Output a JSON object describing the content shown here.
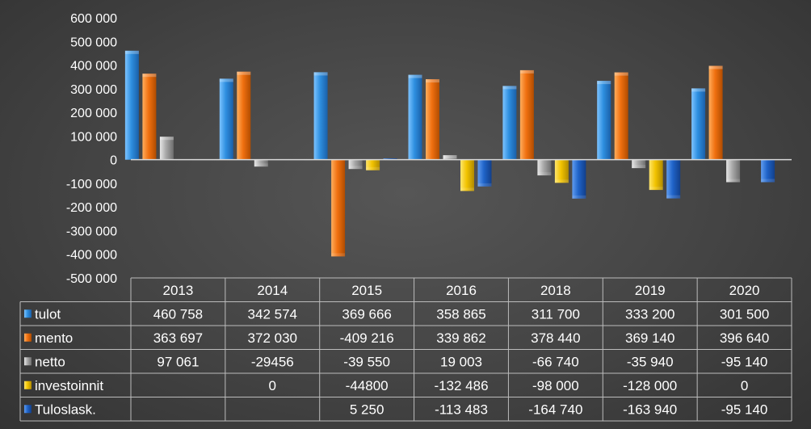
{
  "chart_data": {
    "type": "bar",
    "categories": [
      "2013",
      "2014",
      "2015",
      "2016",
      "2018",
      "2019",
      "2020"
    ],
    "ylim": [
      -500000,
      600000
    ],
    "y_ticks": [
      {
        "value": 600000,
        "label": "600 000"
      },
      {
        "value": 500000,
        "label": "500 000"
      },
      {
        "value": 400000,
        "label": "400 000"
      },
      {
        "value": 300000,
        "label": "300 000"
      },
      {
        "value": 200000,
        "label": "200 000"
      },
      {
        "value": 100000,
        "label": "100 000"
      },
      {
        "value": 0,
        "label": "0"
      },
      {
        "value": -100000,
        "label": "-100 000"
      },
      {
        "value": -200000,
        "label": "-200 000"
      },
      {
        "value": -300000,
        "label": "-300 000"
      },
      {
        "value": -400000,
        "label": "-400 000"
      },
      {
        "value": -500000,
        "label": "-500 000"
      }
    ],
    "series": [
      {
        "name": "tulot",
        "color": "#2e8fe0",
        "values": [
          460758,
          342574,
          369666,
          358865,
          311700,
          333200,
          301500
        ],
        "labels": [
          "460 758",
          "342 574",
          "369 666",
          "358 865",
          "311 700",
          "333 200",
          "301 500"
        ]
      },
      {
        "name": "mento",
        "color": "#f07010",
        "values": [
          363697,
          372030,
          -409216,
          339862,
          378440,
          369140,
          396640
        ],
        "labels": [
          "363 697",
          "372 030",
          "-409 216",
          "339 862",
          "378 440",
          "369 140",
          "396 640"
        ]
      },
      {
        "name": "netto",
        "color": "#9a9a9a",
        "values": [
          97061,
          -29456,
          -39550,
          19003,
          -66740,
          -35940,
          -95140
        ],
        "labels": [
          "97 061",
          "-29456",
          "-39 550",
          "19 003",
          "-66 740",
          "-35 940",
          "-95 140"
        ]
      },
      {
        "name": "investoinnit",
        "color": "#f2c300",
        "values": [
          null,
          0,
          -44800,
          -132486,
          -98000,
          -128000,
          0
        ],
        "labels": [
          "",
          "0",
          "-44800",
          "-132 486",
          "-98 000",
          "-128 000",
          "0"
        ]
      },
      {
        "name": "Tuloslask.",
        "color": "#1f63c8",
        "values": [
          null,
          null,
          5250,
          -113483,
          -164740,
          -163940,
          -95140
        ],
        "labels": [
          "",
          "",
          "5 250",
          "-113 483",
          "-164 740",
          "-163 940",
          "-95 140"
        ]
      }
    ],
    "legend": "data-table",
    "grid": false
  }
}
